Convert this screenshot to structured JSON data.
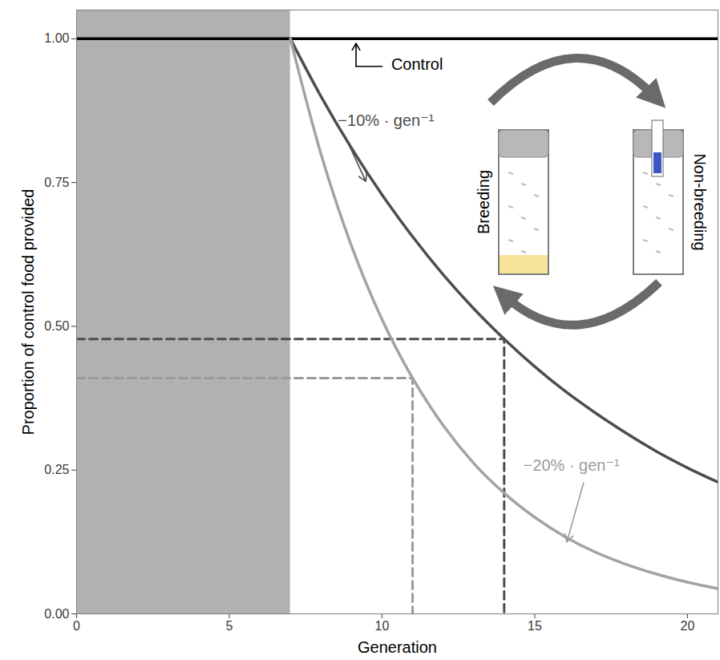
{
  "chart_data": {
    "type": "line",
    "x_label": "Generation",
    "y_label": "Proportion of control food provided",
    "x": [
      0,
      1,
      2,
      3,
      4,
      5,
      6,
      7,
      8,
      9,
      10,
      11,
      12,
      13,
      14,
      15,
      16,
      17,
      18,
      19,
      20,
      21
    ],
    "series": [
      {
        "name": "Control",
        "color": "#000000",
        "values": [
          1,
          1,
          1,
          1,
          1,
          1,
          1,
          1,
          1,
          1,
          1,
          1,
          1,
          1,
          1,
          1,
          1,
          1,
          1,
          1,
          1,
          1
        ]
      },
      {
        "name": "−10% · gen⁻¹",
        "color": "#4d4d4d",
        "values": [
          null,
          null,
          null,
          null,
          null,
          null,
          null,
          1,
          0.9,
          0.81,
          0.729,
          0.656,
          0.59,
          0.531,
          0.478,
          0.43,
          0.387,
          0.349,
          0.314,
          0.282,
          0.254,
          0.229
        ]
      },
      {
        "name": "−20% · gen⁻¹",
        "color": "#a3a3a3",
        "values": [
          null,
          null,
          null,
          null,
          null,
          null,
          null,
          1,
          0.8,
          0.64,
          0.512,
          0.41,
          0.328,
          0.262,
          0.21,
          0.168,
          0.134,
          0.107,
          0.086,
          0.069,
          0.055,
          0.044
        ]
      }
    ],
    "xlim": [
      0,
      21
    ],
    "ylim": [
      0,
      1.05
    ],
    "xticks": [
      0,
      5,
      10,
      15,
      20
    ],
    "yticks": [
      {
        "value": 0,
        "label": "0.00"
      },
      {
        "value": 0.25,
        "label": "0.25"
      },
      {
        "value": 0.5,
        "label": "0.50"
      },
      {
        "value": 0.75,
        "label": "0.75"
      },
      {
        "value": 1,
        "label": "1.00"
      }
    ],
    "shaded_region": {
      "x": [
        0,
        7
      ],
      "color": "#b1b1b3"
    },
    "reference_lines": [
      {
        "x": 14,
        "y": 0.478,
        "color": "#4d4d4d",
        "line_style": "dashed"
      },
      {
        "x": 11,
        "y": 0.41,
        "color": "#9a9a9a",
        "line_style": "dashed"
      }
    ],
    "annotations": [
      {
        "text": "Control",
        "x": 10.3,
        "y": 0.955,
        "color": "#000000",
        "arrow": [
          [
            10.0,
            0.952
          ],
          [
            9.15,
            0.952
          ],
          [
            9.15,
            0.992
          ]
        ]
      },
      {
        "text": "−10% · gen⁻¹",
        "x": 10.13,
        "y": 0.858,
        "color": "#4d4d4d",
        "arrow": [
          [
            8.95,
            0.812
          ],
          [
            9.47,
            0.752
          ]
        ]
      },
      {
        "text": "−20% · gen⁻¹",
        "x": 16.2,
        "y": 0.258,
        "color": "#9a9a9a",
        "arrow": [
          [
            16.6,
            0.228
          ],
          [
            16.05,
            0.125
          ]
        ]
      }
    ],
    "inset_labels": [
      "Breeding",
      "Non-breeding"
    ]
  }
}
